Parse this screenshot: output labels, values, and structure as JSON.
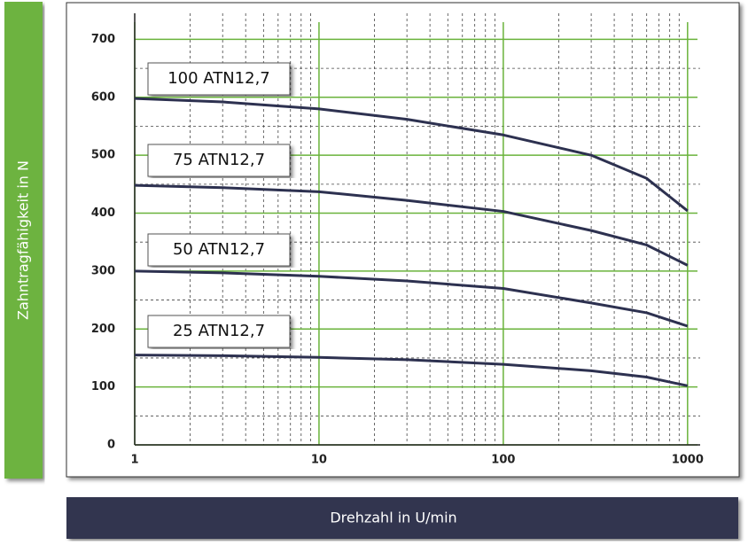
{
  "chart_data": {
    "type": "line",
    "x_label": "Drehzahl in U/min",
    "y_label": "Zahntragfähigkeit in N",
    "x": [
      1,
      3,
      10,
      30,
      100,
      300,
      600,
      1000
    ],
    "series": [
      {
        "name": "100 ATN12,7",
        "color": "#2d3150",
        "values": [
          598,
          592,
          580,
          562,
          535,
          500,
          460,
          404
        ]
      },
      {
        "name": "75 ATN12,7",
        "color": "#2d3150",
        "values": [
          448,
          444,
          437,
          422,
          403,
          370,
          345,
          310
        ]
      },
      {
        "name": "50 ATN12,7",
        "color": "#2d3150",
        "values": [
          300,
          297,
          291,
          283,
          270,
          245,
          228,
          205
        ]
      },
      {
        "name": "25 ATN12,7",
        "color": "#2d3150",
        "values": [
          155,
          154,
          151,
          147,
          139,
          128,
          117,
          102
        ]
      }
    ],
    "log_x": true,
    "xlim": [
      1,
      1170
    ],
    "ylim": [
      0,
      745
    ],
    "xticks": [
      1,
      10,
      100,
      1000
    ],
    "yticks": [
      0,
      100,
      200,
      300,
      400,
      500,
      600,
      700
    ],
    "minor_xticks": [
      2,
      3,
      4,
      5,
      6,
      7,
      8,
      9,
      20,
      30,
      40,
      50,
      60,
      70,
      80,
      90,
      200,
      300,
      400,
      500,
      600,
      700,
      800,
      900
    ],
    "minor_yticks": [
      50,
      150,
      250,
      350,
      450,
      550,
      650
    ],
    "grid": true,
    "grid_color": "#6ab33b"
  }
}
